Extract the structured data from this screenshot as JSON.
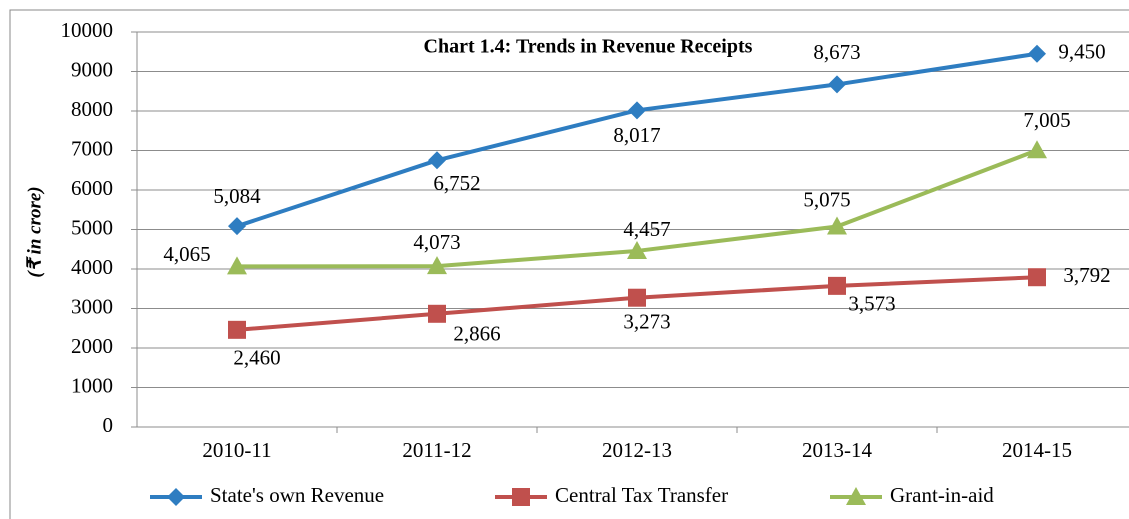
{
  "chart_data": {
    "type": "line",
    "title": "Chart 1.4: Trends in Revenue Receipts",
    "y_label": "(₹ in crore)",
    "categories": [
      "2010-11",
      "2011-12",
      "2012-13",
      "2013-14",
      "2014-15"
    ],
    "series": [
      {
        "name": "State's own Revenue",
        "color": "#2e7dc1",
        "marker": "diamond",
        "values": [
          5084,
          6752,
          8017,
          8673,
          9450
        ],
        "value_labels": [
          "5,084",
          "6,752",
          "8,017",
          "8,673",
          "9,450"
        ]
      },
      {
        "name": "Central Tax Transfer",
        "color": "#c0504d",
        "marker": "square",
        "values": [
          2460,
          2866,
          3273,
          3573,
          3792
        ],
        "value_labels": [
          "2,460",
          "2,866",
          "3,273",
          "3,573",
          "3,792"
        ]
      },
      {
        "name": "Grant-in-aid",
        "color": "#9bbb59",
        "marker": "triangle",
        "values": [
          4065,
          4073,
          4457,
          5075,
          7005
        ],
        "value_labels": [
          "4,065",
          "4,073",
          "4,457",
          "5,075",
          "7,005"
        ]
      }
    ],
    "ylim": [
      0,
      10000
    ],
    "yticks": [
      0,
      1000,
      2000,
      3000,
      4000,
      5000,
      6000,
      7000,
      8000,
      9000,
      10000
    ],
    "grid": true,
    "legend": "bottom"
  }
}
